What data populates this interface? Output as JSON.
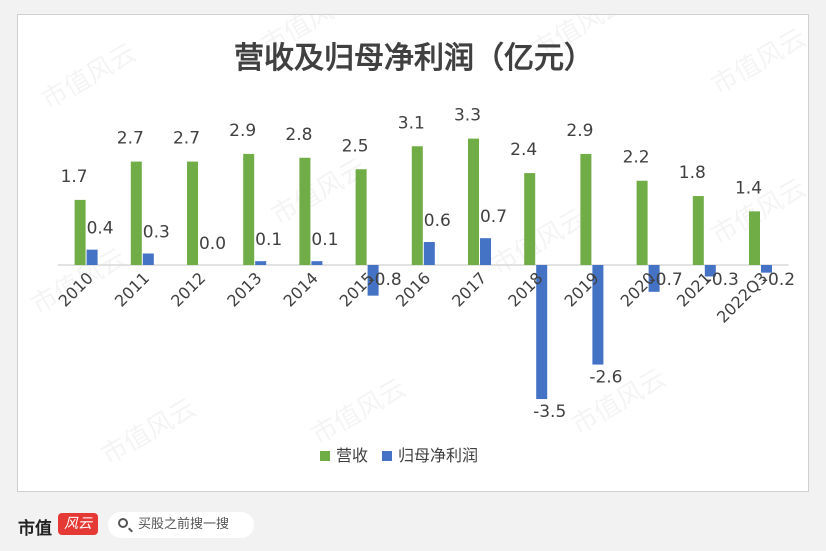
{
  "chart_data": {
    "type": "bar",
    "title": "营收及归母净利润（亿元）",
    "categories": [
      "2010",
      "2011",
      "2012",
      "2013",
      "2014",
      "2015",
      "2016",
      "2017",
      "2018",
      "2019",
      "2020",
      "2021",
      "2022Q3"
    ],
    "series": [
      {
        "name": "营收",
        "color": "#70ad47",
        "values": [
          1.7,
          2.7,
          2.7,
          2.9,
          2.8,
          2.5,
          3.1,
          3.3,
          2.4,
          2.9,
          2.2,
          1.8,
          1.4
        ]
      },
      {
        "name": "归母净利润",
        "color": "#4472c4",
        "values": [
          0.4,
          0.3,
          0.0,
          0.1,
          0.1,
          -0.8,
          0.6,
          0.7,
          -3.5,
          -2.6,
          -0.7,
          -0.3,
          -0.2
        ]
      }
    ],
    "value_labels": {
      "营收": [
        "1.7",
        "2.7",
        "2.7",
        "2.9",
        "2.8",
        "2.5",
        "3.1",
        "3.3",
        "2.4",
        "2.9",
        "2.2",
        "1.8",
        "1.4"
      ],
      "归母净利润": [
        "0.4",
        "0.3",
        "0.0",
        "0.1",
        "0.1",
        "-0.8",
        "0.6",
        "0.7",
        "-3.5",
        "-2.6",
        "-0.7",
        "-0.3",
        "-0.2"
      ]
    },
    "ylim": [
      -3.5,
      3.3
    ],
    "grid": false,
    "legend": "bottom"
  },
  "watermark": "市值风云",
  "footer": {
    "brand": "市值",
    "brand_badge": "风云",
    "search_text": "买股之前搜一搜",
    "search_icon": "search-icon"
  }
}
